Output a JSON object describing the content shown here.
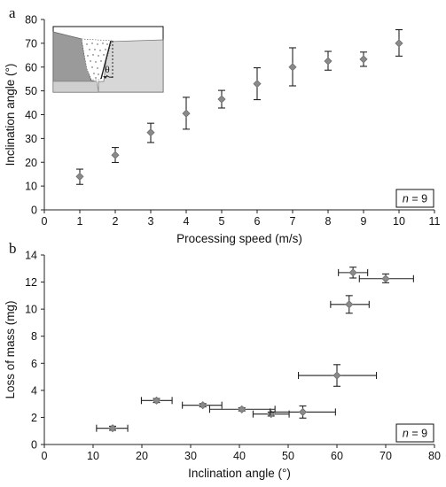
{
  "chart_data": [
    {
      "type": "scatter",
      "panel_label": "a",
      "xlabel": "Processing speed (m/s)",
      "ylabel": "Inclination angle (°)",
      "xlim": [
        0,
        11
      ],
      "ylim": [
        0,
        80
      ],
      "xticks": [
        0,
        1,
        2,
        3,
        4,
        5,
        6,
        7,
        8,
        9,
        10,
        11
      ],
      "yticks": [
        0,
        10,
        20,
        30,
        40,
        50,
        60,
        70,
        80
      ],
      "grid": false,
      "annotation": {
        "italic": "n",
        "rest": " = 9"
      },
      "inset": {
        "symbol": "θ"
      },
      "points": [
        {
          "x": 1,
          "y": 14,
          "yerr": [
            10.7,
            17.1
          ]
        },
        {
          "x": 2,
          "y": 23,
          "yerr": [
            19.9,
            26.2
          ]
        },
        {
          "x": 3,
          "y": 32.5,
          "yerr": [
            28.3,
            36.4
          ]
        },
        {
          "x": 4,
          "y": 40.5,
          "yerr": [
            33.9,
            47.3
          ]
        },
        {
          "x": 5,
          "y": 46.5,
          "yerr": [
            42.8,
            50.2
          ]
        },
        {
          "x": 6,
          "y": 53,
          "yerr": [
            46.3,
            59.7
          ]
        },
        {
          "x": 7,
          "y": 60,
          "yerr": [
            52.1,
            68.1
          ]
        },
        {
          "x": 8,
          "y": 62.5,
          "yerr": [
            58.7,
            66.6
          ]
        },
        {
          "x": 9,
          "y": 63.3,
          "yerr": [
            60.3,
            66.3
          ]
        },
        {
          "x": 10,
          "y": 70,
          "yerr": [
            64.6,
            75.7
          ]
        }
      ]
    },
    {
      "type": "scatter",
      "panel_label": "b",
      "xlabel": "Inclination angle (°)",
      "ylabel": "Loss of mass (mg)",
      "xlim": [
        0,
        80
      ],
      "ylim": [
        0,
        14
      ],
      "xticks": [
        0,
        10,
        20,
        30,
        40,
        50,
        60,
        70,
        80
      ],
      "yticks": [
        0,
        2,
        4,
        6,
        8,
        10,
        12,
        14
      ],
      "grid": false,
      "annotation": {
        "italic": "n",
        "rest": " = 9"
      },
      "points": [
        {
          "x": 14,
          "y": 1.2,
          "xerr": [
            10.7,
            17.1
          ],
          "yerr": [
            1.05,
            1.35
          ]
        },
        {
          "x": 23,
          "y": 3.25,
          "xerr": [
            19.9,
            26.2
          ],
          "yerr": [
            3.1,
            3.4
          ]
        },
        {
          "x": 32.5,
          "y": 2.9,
          "xerr": [
            28.3,
            36.4
          ],
          "yerr": [
            2.78,
            3.02
          ]
        },
        {
          "x": 40.5,
          "y": 2.6,
          "xerr": [
            33.9,
            47.3
          ],
          "yerr": [
            2.48,
            2.72
          ]
        },
        {
          "x": 46.5,
          "y": 2.25,
          "xerr": [
            42.8,
            50.2
          ],
          "yerr": [
            2.1,
            2.4
          ]
        },
        {
          "x": 53,
          "y": 2.4,
          "xerr": [
            46.3,
            59.7
          ],
          "yerr": [
            1.95,
            2.85
          ]
        },
        {
          "x": 60,
          "y": 5.1,
          "xerr": [
            52.1,
            68.1
          ],
          "yerr": [
            4.3,
            5.9
          ]
        },
        {
          "x": 62.5,
          "y": 10.35,
          "xerr": [
            58.7,
            66.6
          ],
          "yerr": [
            9.7,
            11.0
          ]
        },
        {
          "x": 63.3,
          "y": 12.7,
          "xerr": [
            60.3,
            66.3
          ],
          "yerr": [
            12.3,
            13.1
          ]
        },
        {
          "x": 70,
          "y": 12.25,
          "xerr": [
            64.6,
            75.7
          ],
          "yerr": [
            11.95,
            12.6
          ]
        }
      ]
    }
  ]
}
